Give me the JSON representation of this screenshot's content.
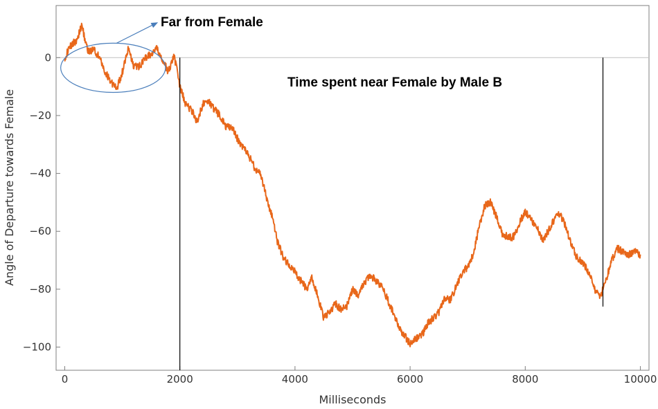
{
  "chart_data": {
    "type": "line",
    "title": "",
    "xlabel": "Milliseconds",
    "ylabel": "Angle of Departure towards Female",
    "xlim": [
      -150,
      10150
    ],
    "ylim": [
      -108,
      18
    ],
    "xticks": [
      0,
      2000,
      4000,
      6000,
      8000,
      10000
    ],
    "yticks": [
      0,
      -20,
      -40,
      -60,
      -80,
      -100
    ],
    "xtick_labels": [
      "0",
      "2000",
      "4000",
      "6000",
      "8000",
      "10000"
    ],
    "ytick_labels": [
      "0",
      "−20",
      "−40",
      "−60",
      "−80",
      "−100"
    ],
    "grid": false,
    "zero_reference_line": true,
    "series": [
      {
        "color": "#E8671A",
        "x": [
          0,
          100,
          200,
          300,
          400,
          500,
          600,
          700,
          800,
          900,
          1000,
          1100,
          1200,
          1300,
          1400,
          1500,
          1600,
          1700,
          1800,
          1900,
          2000,
          2100,
          2200,
          2300,
          2400,
          2500,
          2600,
          2700,
          2800,
          2900,
          3000,
          3100,
          3200,
          3300,
          3400,
          3500,
          3600,
          3700,
          3800,
          3900,
          4000,
          4100,
          4200,
          4300,
          4400,
          4500,
          4600,
          4700,
          4800,
          4900,
          5000,
          5100,
          5200,
          5300,
          5400,
          5500,
          5600,
          5700,
          5800,
          5900,
          6000,
          6100,
          6200,
          6300,
          6400,
          6500,
          6600,
          6700,
          6800,
          6900,
          7000,
          7100,
          7200,
          7300,
          7400,
          7500,
          7600,
          7700,
          7800,
          7900,
          8000,
          8100,
          8200,
          8300,
          8400,
          8500,
          8600,
          8700,
          8800,
          8900,
          9000,
          9100,
          9200,
          9300,
          9400,
          9500,
          9600,
          9700,
          9800,
          9900,
          10000
        ],
        "y": [
          0,
          4,
          6,
          11,
          2,
          3,
          0,
          -5,
          -8,
          -11,
          -5,
          3,
          -3,
          -3,
          0,
          1,
          3,
          -1,
          -5,
          1,
          -10,
          -16,
          -18,
          -22,
          -16,
          -15,
          -18,
          -20,
          -24,
          -24,
          -28,
          -31,
          -34,
          -38,
          -40,
          -48,
          -55,
          -64,
          -69,
          -72,
          -74,
          -77,
          -80,
          -76,
          -83,
          -90,
          -88,
          -85,
          -87,
          -86,
          -80,
          -82,
          -78,
          -75,
          -77,
          -79,
          -83,
          -88,
          -93,
          -96,
          -99,
          -97,
          -96,
          -92,
          -90,
          -88,
          -83,
          -84,
          -79,
          -75,
          -72,
          -68,
          -58,
          -51,
          -50,
          -55,
          -61,
          -62,
          -62,
          -57,
          -53,
          -56,
          -58,
          -63,
          -60,
          -56,
          -54,
          -58,
          -65,
          -69,
          -71,
          -74,
          -80,
          -83,
          -77,
          -70,
          -66,
          -67,
          -68,
          -67,
          -68
        ]
      }
    ],
    "vertical_markers": [
      {
        "x": 2000,
        "y_top": 0,
        "y_bottom": -108
      },
      {
        "x": 9350,
        "y_top": 0,
        "y_bottom": -86
      }
    ],
    "ellipse_highlight": {
      "cx": 840,
      "cy": -3.5,
      "rx": 910,
      "ry": 8.5
    },
    "arrow": {
      "from": [
        900,
        5
      ],
      "to": [
        1600,
        12
      ]
    },
    "annotations": {
      "far": "Far from Female",
      "near": "Time spent near Female by Male B"
    }
  }
}
